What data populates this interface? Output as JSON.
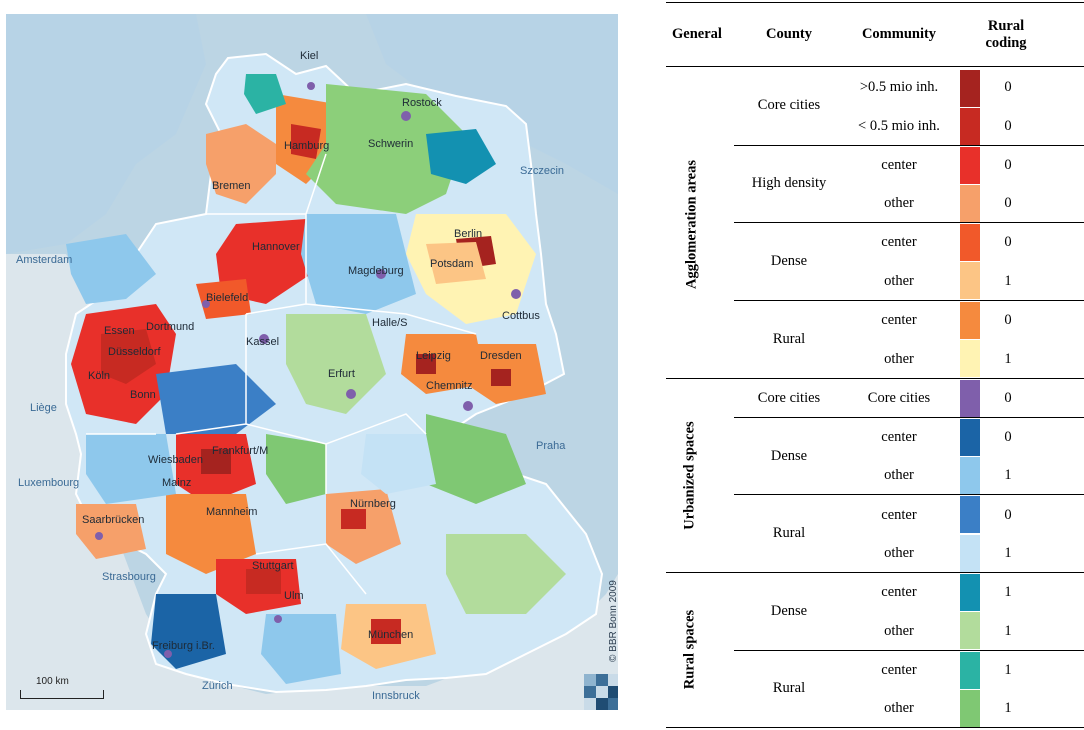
{
  "map": {
    "cities": [
      "Kiel",
      "Rostock",
      "Hamburg",
      "Schwerin",
      "Bremen",
      "Szczecin",
      "Hannover",
      "Berlin",
      "Potsdam",
      "Magdeburg",
      "Bielefeld",
      "Essen",
      "Dortmund",
      "Düsseldorf",
      "Köln",
      "Bonn",
      "Kassel",
      "Halle/S",
      "Cottbus",
      "Leipzig",
      "Dresden",
      "Erfurt",
      "Chemnitz",
      "Wiesbaden",
      "Frankfurt/M",
      "Mainz",
      "Mannheim",
      "Saarbrücken",
      "Nürnberg",
      "Stuttgart",
      "Ulm",
      "München",
      "Freiburg i.Br."
    ],
    "places": [
      "Amsterdam",
      "Liège",
      "Luxembourg",
      "Praha",
      "Strasbourg",
      "Zürich",
      "Innsbruck"
    ],
    "credit": "© BBR Bonn 2009",
    "scale_label": "100 km"
  },
  "table": {
    "headers": {
      "general": "General",
      "county": "County",
      "community": "Community",
      "rural_coding": "Rural coding"
    },
    "groups": [
      {
        "general": "Agglomeration areas",
        "counties": [
          {
            "county": "Core cities",
            "rows": [
              {
                "community": ">0.5 mio inh.",
                "color": "#a5231f",
                "code": "0"
              },
              {
                "community": "< 0.5 mio inh.",
                "color": "#c72a22",
                "code": "0"
              }
            ]
          },
          {
            "county": "High density",
            "rows": [
              {
                "community": "center",
                "color": "#e8302a",
                "code": "0"
              },
              {
                "community": "other",
                "color": "#f6a06a",
                "code": "0"
              }
            ]
          },
          {
            "county": "Dense",
            "rows": [
              {
                "community": "center",
                "color": "#f1592a",
                "code": "0"
              },
              {
                "community": "other",
                "color": "#fcc585",
                "code": "1"
              }
            ]
          },
          {
            "county": "Rural",
            "rows": [
              {
                "community": "center",
                "color": "#f58a3e",
                "code": "0"
              },
              {
                "community": "other",
                "color": "#fff3b3",
                "code": "1"
              }
            ]
          }
        ]
      },
      {
        "general": "Urbanized spaces",
        "counties": [
          {
            "county": "Core cities",
            "rows": [
              {
                "community": "Core cities",
                "color": "#7f5fab",
                "code": "0"
              }
            ]
          },
          {
            "county": "Dense",
            "rows": [
              {
                "community": "center",
                "color": "#1b64a6",
                "code": "0"
              },
              {
                "community": "other",
                "color": "#8ec8ec",
                "code": "1"
              }
            ]
          },
          {
            "county": "Rural",
            "rows": [
              {
                "community": "center",
                "color": "#3b7fc6",
                "code": "0"
              },
              {
                "community": "other",
                "color": "#c4e2f5",
                "code": "1"
              }
            ]
          }
        ]
      },
      {
        "general": "Rural spaces",
        "counties": [
          {
            "county": "Dense",
            "rows": [
              {
                "community": "center",
                "color": "#1391b1",
                "code": "1"
              },
              {
                "community": "other",
                "color": "#b2dc9c",
                "code": "1"
              }
            ]
          },
          {
            "county": "Rural",
            "rows": [
              {
                "community": "center",
                "color": "#2bb3a4",
                "code": "1"
              },
              {
                "community": "other",
                "color": "#7fc873",
                "code": "1"
              }
            ]
          }
        ]
      }
    ]
  }
}
